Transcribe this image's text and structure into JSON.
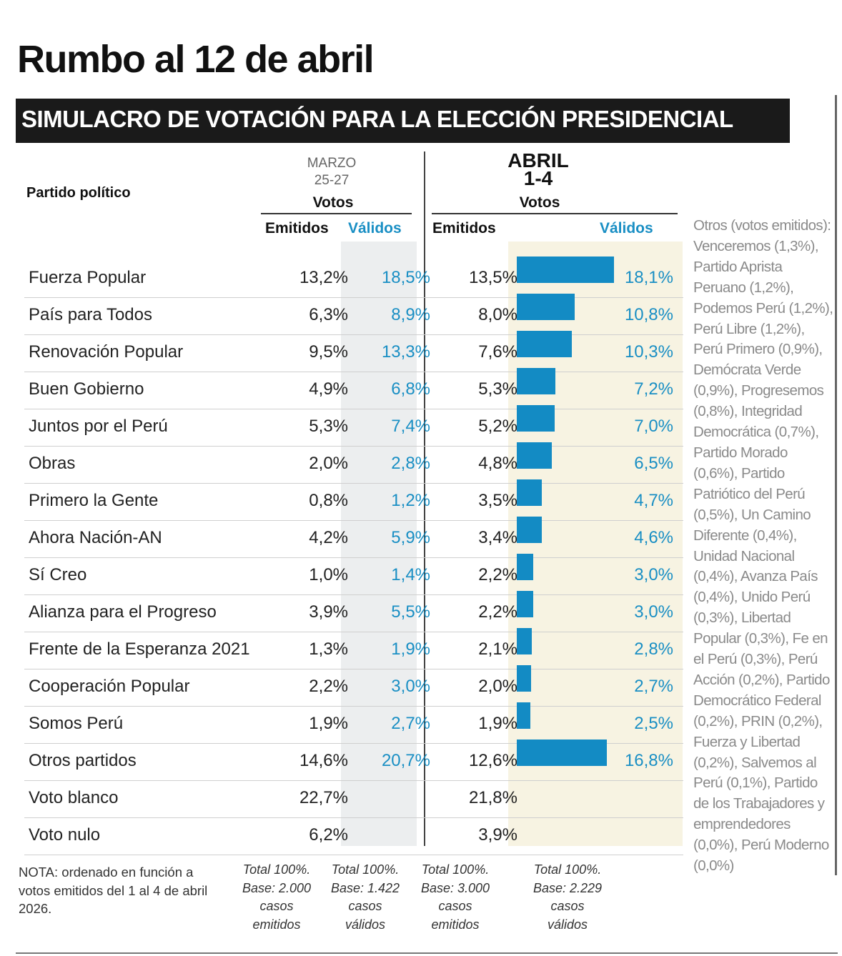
{
  "title": "Rumbo al 12 de abril",
  "subtitle": "SIMULACRO DE VOTACIÓN PARA LA ELECCIÓN PRESIDENCIAL",
  "headers": {
    "party": "Partido político",
    "marzo_month": "MARZO",
    "marzo_days": "25-27",
    "abril_month": "ABRIL",
    "abril_days": "1-4",
    "votos": "Votos",
    "emitidos": "Emitidos",
    "validos": "Válidos"
  },
  "chart_data": {
    "type": "table",
    "title": "SIMULACRO DE VOTACIÓN PARA LA ELECCIÓN PRESIDENCIAL",
    "columns": [
      "Partido político",
      "Marzo Emitidos",
      "Marzo Válidos",
      "Abril Emitidos",
      "Abril Válidos"
    ],
    "rows": [
      {
        "party": "Fuerza Popular",
        "m_em": "13,2%",
        "m_val": "18,5%",
        "a_em": "13,5%",
        "a_val": "18,1%",
        "a_val_num": 18.1
      },
      {
        "party": "País para Todos",
        "m_em": "6,3%",
        "m_val": "8,9%",
        "a_em": "8,0%",
        "a_val": "10,8%",
        "a_val_num": 10.8
      },
      {
        "party": "Renovación Popular",
        "m_em": "9,5%",
        "m_val": "13,3%",
        "a_em": "7,6%",
        "a_val": "10,3%",
        "a_val_num": 10.3
      },
      {
        "party": "Buen Gobierno",
        "m_em": "4,9%",
        "m_val": "6,8%",
        "a_em": "5,3%",
        "a_val": "7,2%",
        "a_val_num": 7.2
      },
      {
        "party": "Juntos por el Perú",
        "m_em": "5,3%",
        "m_val": "7,4%",
        "a_em": "5,2%",
        "a_val": "7,0%",
        "a_val_num": 7.0
      },
      {
        "party": "Obras",
        "m_em": "2,0%",
        "m_val": "2,8%",
        "a_em": "4,8%",
        "a_val": "6,5%",
        "a_val_num": 6.5
      },
      {
        "party": "Primero la Gente",
        "m_em": "0,8%",
        "m_val": "1,2%",
        "a_em": "3,5%",
        "a_val": "4,7%",
        "a_val_num": 4.7
      },
      {
        "party": "Ahora Nación-AN",
        "m_em": "4,2%",
        "m_val": "5,9%",
        "a_em": "3,4%",
        "a_val": "4,6%",
        "a_val_num": 4.6
      },
      {
        "party": "Sí Creo",
        "m_em": "1,0%",
        "m_val": "1,4%",
        "a_em": "2,2%",
        "a_val": "3,0%",
        "a_val_num": 3.0
      },
      {
        "party": "Alianza para el Progreso",
        "m_em": "3,9%",
        "m_val": "5,5%",
        "a_em": "2,2%",
        "a_val": "3,0%",
        "a_val_num": 3.0
      },
      {
        "party": "Frente de la Esperanza 2021",
        "m_em": "1,3%",
        "m_val": "1,9%",
        "a_em": "2,1%",
        "a_val": "2,8%",
        "a_val_num": 2.8
      },
      {
        "party": "Cooperación Popular",
        "m_em": "2,2%",
        "m_val": "3,0%",
        "a_em": "2,0%",
        "a_val": "2,7%",
        "a_val_num": 2.7
      },
      {
        "party": "Somos Perú",
        "m_em": "1,9%",
        "m_val": "2,7%",
        "a_em": "1,9%",
        "a_val": "2,5%",
        "a_val_num": 2.5
      },
      {
        "party": "Otros partidos",
        "m_em": "14,6%",
        "m_val": "20,7%",
        "a_em": "12,6%",
        "a_val": "16,8%",
        "a_val_num": 16.8
      },
      {
        "party": "Voto blanco",
        "m_em": "22,7%",
        "m_val": "",
        "a_em": "21,8%",
        "a_val": "",
        "a_val_num": null
      },
      {
        "party": "Voto nulo",
        "m_em": "6,2%",
        "m_val": "",
        "a_em": "3,9%",
        "a_val": "",
        "a_val_num": null
      }
    ]
  },
  "notes": "Otros (votos emitidos): Venceremos (1,3%), Partido Aprista Peruano (1,2%), Podemos Perú (1,2%), Perú Libre (1,2%), Perú Primero (0,9%), Demócrata Verde (0,9%), Progresemos (0,8%), Integridad Democrática (0,7%), Partido Morado (0,6%), Partido Patriótico del Perú (0,5%), Un Camino Diferente (0,4%), Unidad Nacional (0,4%), Avanza País (0,4%), Unido Perú (0,3%), Libertad Popular (0,3%), Fe en el Perú (0,3%), Perú Acción (0,2%), Partido Democrático Federal (0,2%), PRIN (0,2%), Fuerza y Libertad (0,2%), Salvemos al Perú (0,1%), Partido de los Trabajadores y emprendedores (0,0%), Perú Moderno (0,0%)",
  "nota": "NOTA: ordenado en función a votos emitidos del 1 al 4 de abril 2026.",
  "footers": [
    {
      "l1": "Total 100%.",
      "l2": "Base: 2.000",
      "l3": "casos",
      "l4": "emitidos"
    },
    {
      "l1": "Total 100%.",
      "l2": "Base: 1.422",
      "l3": "casos",
      "l4": "válidos"
    },
    {
      "l1": "Total 100%.",
      "l2": "Base: 3.000",
      "l3": "casos",
      "l4": "emitidos"
    },
    {
      "l1": "Total 100%.",
      "l2": "Base: 2.229",
      "l3": "casos",
      "l4": "válidos"
    }
  ],
  "colors": {
    "bar": "#138bc4",
    "accent_text": "#1a8fc4"
  }
}
